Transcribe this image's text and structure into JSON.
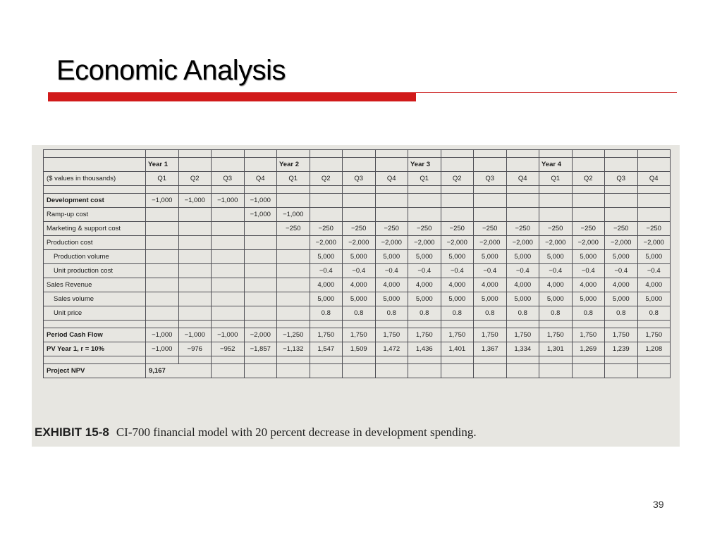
{
  "slide": {
    "title": "Economic Analysis",
    "page_number": "39"
  },
  "exhibit": {
    "label": "EXHIBIT 15-8",
    "caption": "CI-700 financial model with 20 percent decrease in development spending.",
    "table": {
      "years": [
        "Year 1",
        "Year 2",
        "Year 3",
        "Year 4"
      ],
      "units_label": "($ values in thousands)",
      "quarters": [
        "Q1",
        "Q2",
        "Q3",
        "Q4",
        "Q1",
        "Q2",
        "Q3",
        "Q4",
        "Q1",
        "Q2",
        "Q3",
        "Q4",
        "Q1",
        "Q2",
        "Q3",
        "Q4"
      ],
      "rows": [
        {
          "label": "Development cost",
          "style": "bold",
          "values": [
            "−1,000",
            "−1,000",
            "−1,000",
            "−1,000",
            "",
            "",
            "",
            "",
            "",
            "",
            "",
            "",
            "",
            "",
            "",
            ""
          ]
        },
        {
          "label": "Ramp-up cost",
          "style": "normal",
          "values": [
            "",
            "",
            "",
            "−1,000",
            "−1,000",
            "",
            "",
            "",
            "",
            "",
            "",
            "",
            "",
            "",
            "",
            ""
          ]
        },
        {
          "label": "Marketing & support cost",
          "style": "normal",
          "values": [
            "",
            "",
            "",
            "",
            "−250",
            "−250",
            "−250",
            "−250",
            "−250",
            "−250",
            "−250",
            "−250",
            "−250",
            "−250",
            "−250",
            "−250"
          ]
        },
        {
          "label": "Production cost",
          "style": "normal",
          "values": [
            "",
            "",
            "",
            "",
            "",
            "−2,000",
            "−2,000",
            "−2,000",
            "−2,000",
            "−2,000",
            "−2,000",
            "−2,000",
            "−2,000",
            "−2,000",
            "−2,000",
            "−2,000"
          ]
        },
        {
          "label": "Production volume",
          "style": "indent",
          "values": [
            "",
            "",
            "",
            "",
            "",
            "5,000",
            "5,000",
            "5,000",
            "5,000",
            "5,000",
            "5,000",
            "5,000",
            "5,000",
            "5,000",
            "5,000",
            "5,000"
          ]
        },
        {
          "label": "Unit production cost",
          "style": "indent",
          "values": [
            "",
            "",
            "",
            "",
            "",
            "−0.4",
            "−0.4",
            "−0.4",
            "−0.4",
            "−0.4",
            "−0.4",
            "−0.4",
            "−0.4",
            "−0.4",
            "−0.4",
            "−0.4"
          ]
        },
        {
          "label": "Sales Revenue",
          "style": "normal",
          "values": [
            "",
            "",
            "",
            "",
            "",
            "4,000",
            "4,000",
            "4,000",
            "4,000",
            "4,000",
            "4,000",
            "4,000",
            "4,000",
            "4,000",
            "4,000",
            "4,000"
          ]
        },
        {
          "label": "Sales volume",
          "style": "indent",
          "values": [
            "",
            "",
            "",
            "",
            "",
            "5,000",
            "5,000",
            "5,000",
            "5,000",
            "5,000",
            "5,000",
            "5,000",
            "5,000",
            "5,000",
            "5,000",
            "5,000"
          ]
        },
        {
          "label": "Unit price",
          "style": "indent",
          "values": [
            "",
            "",
            "",
            "",
            "",
            "0.8",
            "0.8",
            "0.8",
            "0.8",
            "0.8",
            "0.8",
            "0.8",
            "0.8",
            "0.8",
            "0.8",
            "0.8"
          ]
        },
        {
          "label": "Period Cash Flow",
          "style": "bold",
          "values": [
            "−1,000",
            "−1,000",
            "−1,000",
            "−2,000",
            "−1,250",
            "1,750",
            "1,750",
            "1,750",
            "1,750",
            "1,750",
            "1,750",
            "1,750",
            "1,750",
            "1,750",
            "1,750",
            "1,750"
          ]
        },
        {
          "label": "PV Year 1, r = 10%",
          "style": "bold",
          "values": [
            "−1,000",
            "−976",
            "−952",
            "−1,857",
            "−1,132",
            "1,547",
            "1,509",
            "1,472",
            "1,436",
            "1,401",
            "1,367",
            "1,334",
            "1,301",
            "1,269",
            "1,239",
            "1,208"
          ]
        }
      ],
      "npv": {
        "label": "Project NPV",
        "value": "9,167"
      }
    }
  }
}
